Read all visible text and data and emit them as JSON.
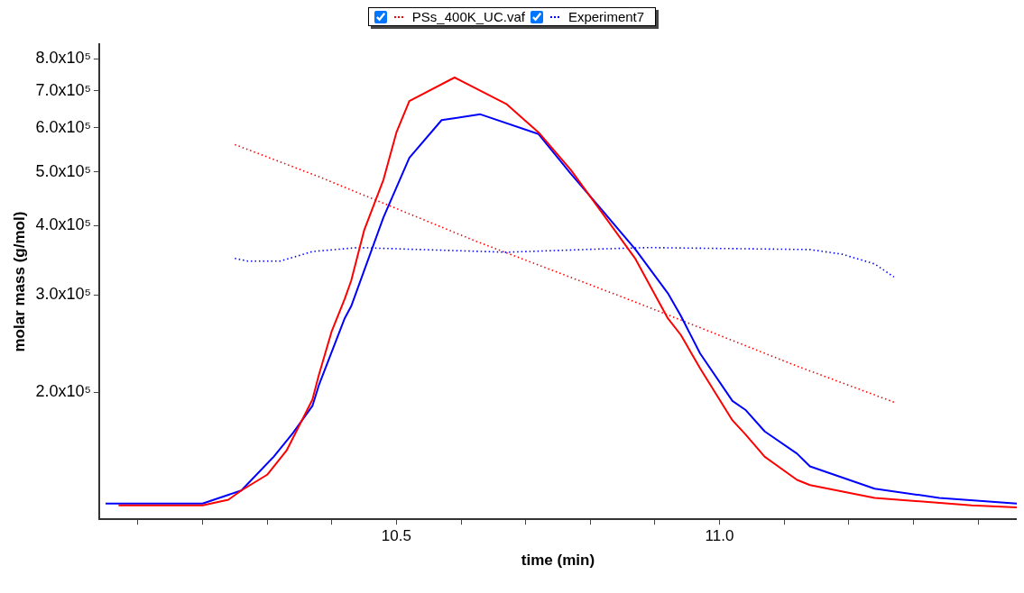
{
  "chart_data": {
    "type": "line",
    "xlabel": "time (min)",
    "ylabel": "molar mass (g/mol)",
    "log": "y",
    "grid": false,
    "legend": "top",
    "marker": "none",
    "xlim": [
      10.04,
      11.46
    ],
    "xticks": [
      {
        "value": 10.1,
        "label": null
      },
      {
        "value": 10.2,
        "label": null
      },
      {
        "value": 10.3,
        "label": null
      },
      {
        "value": 10.4,
        "label": null
      },
      10.5,
      {
        "value": 10.6,
        "label": null
      },
      {
        "value": 10.7,
        "label": null
      },
      {
        "value": 10.8,
        "label": null
      },
      {
        "value": 10.9,
        "label": null
      },
      {
        "value": 11,
        "label": "11.0"
      },
      {
        "value": 11.1,
        "label": null
      },
      {
        "value": 11.2,
        "label": null
      },
      {
        "value": 11.3,
        "label": null
      },
      {
        "value": 11.4,
        "label": null
      }
    ],
    "ylim": [
      118000,
      850000
    ],
    "yticks": [
      {
        "value": 200000,
        "label": "2.0x10⁵"
      },
      {
        "value": 300000,
        "label": "3.0x10⁵"
      },
      {
        "value": 400000,
        "label": "4.0x10⁵"
      },
      {
        "value": 500000,
        "label": "5.0x10⁵"
      },
      {
        "value": 600000,
        "label": "6.0x10⁵"
      },
      {
        "value": 700000,
        "label": "7.0x10⁵"
      },
      {
        "value": 800000,
        "label": "8.0x10⁵"
      }
    ],
    "series": [
      {
        "color": "#ff0000",
        "line_style": "solid",
        "x": [
          10.07,
          10.2,
          10.24,
          10.26,
          10.3,
          10.33,
          10.37,
          10.38,
          10.4,
          10.42,
          10.43,
          10.45,
          10.48,
          10.5,
          10.52,
          10.59,
          10.67,
          10.72,
          10.77,
          10.82,
          10.87,
          10.92,
          10.94,
          10.97,
          11.02,
          11.04,
          11.07,
          11.12,
          11.14,
          11.24,
          11.39,
          11.46
        ],
        "values": [
          125000,
          125000,
          128000,
          133000,
          142000,
          157000,
          194000,
          215000,
          258000,
          295000,
          318000,
          392000,
          484000,
          589000,
          671000,
          740000,
          663000,
          589000,
          504000,
          419000,
          348000,
          272000,
          254000,
          221000,
          178000,
          168000,
          153000,
          139000,
          136000,
          129000,
          125000,
          124000
        ]
      },
      {
        "color": "#0000ff",
        "line_style": "solid",
        "x": [
          10.05,
          10.2,
          10.26,
          10.31,
          10.34,
          10.37,
          10.38,
          10.42,
          10.43,
          10.48,
          10.52,
          10.57,
          10.63,
          10.72,
          10.77,
          10.82,
          10.87,
          10.92,
          10.94,
          10.97,
          11.02,
          11.04,
          11.07,
          11.12,
          11.14,
          11.24,
          11.34,
          11.46
        ],
        "values": [
          126000,
          126000,
          133000,
          153000,
          169000,
          189000,
          206000,
          272000,
          286000,
          414000,
          530000,
          620000,
          635000,
          585000,
          496000,
          424000,
          362000,
          302000,
          275000,
          235000,
          193000,
          186000,
          170000,
          155000,
          147000,
          134000,
          129000,
          126000
        ]
      },
      {
        "name": "PSs_400K_UC.vaf",
        "color": "#ff0000",
        "line_style": "dotted",
        "x": [
          10.25,
          10.38,
          10.62,
          10.87,
          11.12,
          11.27
        ],
        "values": [
          560000,
          490000,
          376000,
          291000,
          223000,
          192000
        ]
      },
      {
        "name": "Experiment7",
        "color": "#0000ff",
        "line_style": "dotted",
        "x": [
          10.25,
          10.27,
          10.32,
          10.37,
          10.44,
          10.67,
          10.82,
          10.89,
          11.14,
          11.19,
          11.24,
          11.27
        ],
        "values": [
          349000,
          345000,
          345000,
          359000,
          365000,
          358000,
          363000,
          365000,
          362000,
          355000,
          341000,
          323000
        ]
      }
    ]
  }
}
